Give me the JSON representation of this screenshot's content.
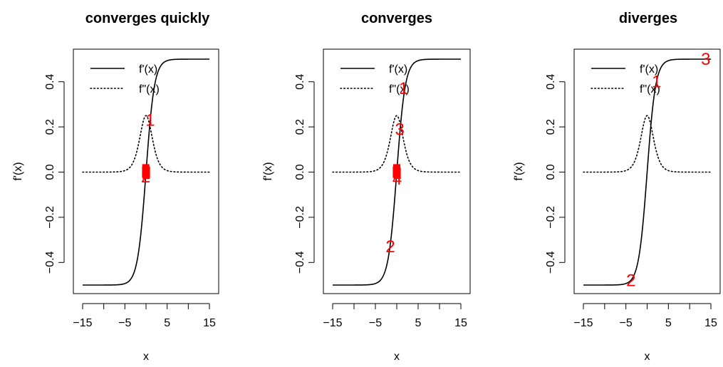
{
  "chart_data": [
    {
      "type": "line",
      "title": "converges quickly",
      "xlabel": "x",
      "ylabel": "f'(x)",
      "xlim": [
        -15,
        15
      ],
      "ylim": [
        -0.5,
        0.5
      ],
      "x_ticks": [
        -15,
        -10,
        -5,
        0,
        5,
        10,
        15
      ],
      "x_tick_labels": [
        "−15",
        "",
        "−5",
        "",
        "5",
        "",
        "15"
      ],
      "y_ticks": [
        -0.4,
        -0.2,
        0.0,
        0.2,
        0.4
      ],
      "y_tick_labels": [
        "−0.4",
        "−0.2",
        "0.0",
        "0.2",
        "0.4"
      ],
      "grid": false,
      "legend": {
        "placement": "top-left",
        "entries": [
          "f'(x)",
          "f\"(x)"
        ]
      },
      "series": [
        {
          "name": "f'(x)",
          "function": "logistic_minus_half",
          "style": "solid",
          "color": "#000000"
        },
        {
          "name": "f\"(x)",
          "function": "logistic_derivative",
          "style": "dotted",
          "color": "#000000"
        }
      ],
      "iterates": {
        "color": "#ff0000",
        "points": [
          {
            "label": "1",
            "x": 1,
            "y": 0.231
          },
          {
            "label": "2",
            "x": -0.08,
            "y": -0.02
          },
          {
            "label": "",
            "x": -0.1,
            "y": 0.0
          },
          {
            "label": "",
            "x": 0.1,
            "y": 0.0
          },
          {
            "label": "",
            "x": -0.05,
            "y": 0.01
          },
          {
            "label": "",
            "x": 0.05,
            "y": -0.005
          }
        ]
      }
    },
    {
      "type": "line",
      "title": "converges",
      "xlabel": "x",
      "ylabel": "f'(x)",
      "xlim": [
        -15,
        15
      ],
      "ylim": [
        -0.5,
        0.5
      ],
      "x_ticks": [
        -15,
        -10,
        -5,
        0,
        5,
        10,
        15
      ],
      "x_tick_labels": [
        "−15",
        "",
        "−5",
        "",
        "5",
        "",
        "15"
      ],
      "y_ticks": [
        -0.4,
        -0.2,
        0.0,
        0.2,
        0.4
      ],
      "y_tick_labels": [
        "−0.4",
        "−0.2",
        "0.0",
        "0.2",
        "0.4"
      ],
      "grid": false,
      "legend": {
        "placement": "top-left",
        "entries": [
          "f'(x)",
          "f\"(x)"
        ]
      },
      "series": [
        {
          "name": "f'(x)",
          "function": "logistic_minus_half",
          "style": "solid",
          "color": "#000000"
        },
        {
          "name": "f\"(x)",
          "function": "logistic_derivative",
          "style": "dotted",
          "color": "#000000"
        }
      ],
      "iterates": {
        "color": "#ff0000",
        "points": [
          {
            "label": "1",
            "x": 1.6,
            "y": 0.37
          },
          {
            "label": "2",
            "x": -1.5,
            "y": -0.33
          },
          {
            "label": "3",
            "x": 0.7,
            "y": 0.19
          },
          {
            "label": "4",
            "x": 0.1,
            "y": -0.03
          },
          {
            "label": "",
            "x": 0.0,
            "y": 0.01
          },
          {
            "label": "",
            "x": -0.1,
            "y": 0.0
          },
          {
            "label": "",
            "x": 0.1,
            "y": -0.005
          }
        ]
      }
    },
    {
      "type": "line",
      "title": "diverges",
      "xlabel": "x",
      "ylabel": "f'(x)",
      "xlim": [
        -15,
        15
      ],
      "ylim": [
        -0.5,
        0.5
      ],
      "x_ticks": [
        -15,
        -10,
        -5,
        0,
        5,
        10,
        15
      ],
      "x_tick_labels": [
        "−15",
        "",
        "−5",
        "",
        "5",
        "",
        "15"
      ],
      "y_ticks": [
        -0.4,
        -0.2,
        0.0,
        0.2,
        0.4
      ],
      "y_tick_labels": [
        "−0.4",
        "−0.2",
        "0.0",
        "0.2",
        "0.4"
      ],
      "grid": false,
      "legend": {
        "placement": "top-left",
        "entries": [
          "f'(x)",
          "f\"(x)"
        ]
      },
      "series": [
        {
          "name": "f'(x)",
          "function": "logistic_minus_half",
          "style": "solid",
          "color": "#000000"
        },
        {
          "name": "f\"(x)",
          "function": "logistic_derivative",
          "style": "dotted",
          "color": "#000000"
        }
      ],
      "iterates": {
        "color": "#ff0000",
        "points": [
          {
            "label": "1",
            "x": 2.2,
            "y": 0.4
          },
          {
            "label": "2",
            "x": -3.8,
            "y": -0.48
          },
          {
            "label": "3",
            "x": 13.8,
            "y": 0.5
          }
        ]
      }
    }
  ]
}
